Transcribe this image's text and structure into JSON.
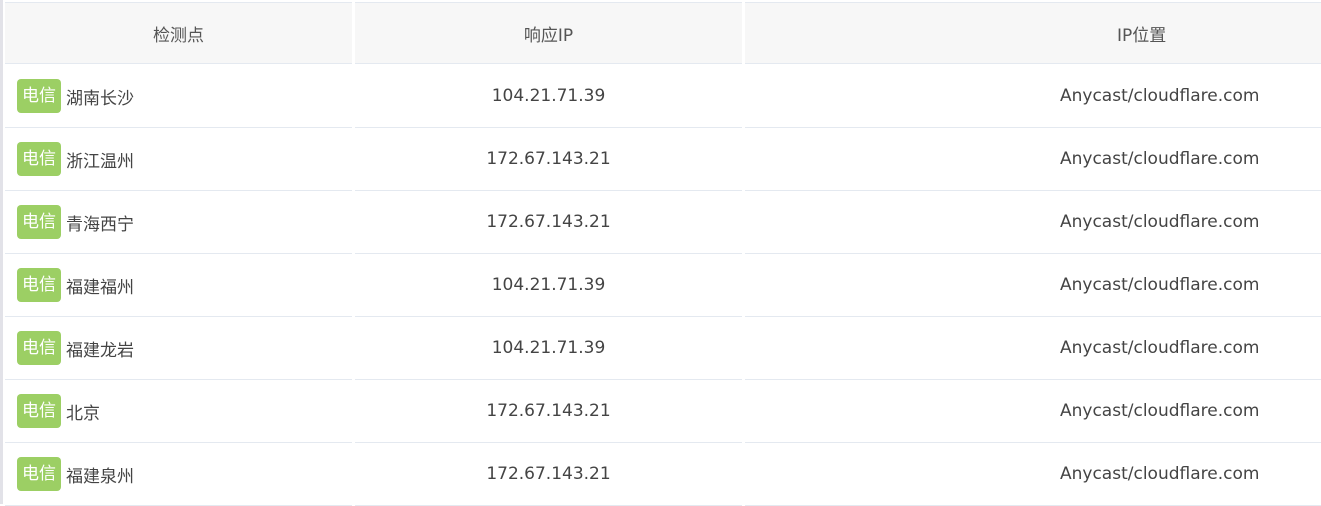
{
  "colors": {
    "badge": "#9ccf64",
    "header_bg": "#f7f7f7",
    "border": "#e4e9f0"
  },
  "headers": [
    "检测点",
    "响应IP",
    "IP位置"
  ],
  "rows": [
    {
      "isp": "电信",
      "location": "湖南长沙",
      "ip": "104.21.71.39",
      "ip_location": "Anycast/cloudflare.com"
    },
    {
      "isp": "电信",
      "location": "浙江温州",
      "ip": "172.67.143.21",
      "ip_location": "Anycast/cloudflare.com"
    },
    {
      "isp": "电信",
      "location": "青海西宁",
      "ip": "172.67.143.21",
      "ip_location": "Anycast/cloudflare.com"
    },
    {
      "isp": "电信",
      "location": "福建福州",
      "ip": "104.21.71.39",
      "ip_location": "Anycast/cloudflare.com"
    },
    {
      "isp": "电信",
      "location": "福建龙岩",
      "ip": "104.21.71.39",
      "ip_location": "Anycast/cloudflare.com"
    },
    {
      "isp": "电信",
      "location": "北京",
      "ip": "172.67.143.21",
      "ip_location": "Anycast/cloudflare.com"
    },
    {
      "isp": "电信",
      "location": "福建泉州",
      "ip": "172.67.143.21",
      "ip_location": "Anycast/cloudflare.com"
    }
  ]
}
